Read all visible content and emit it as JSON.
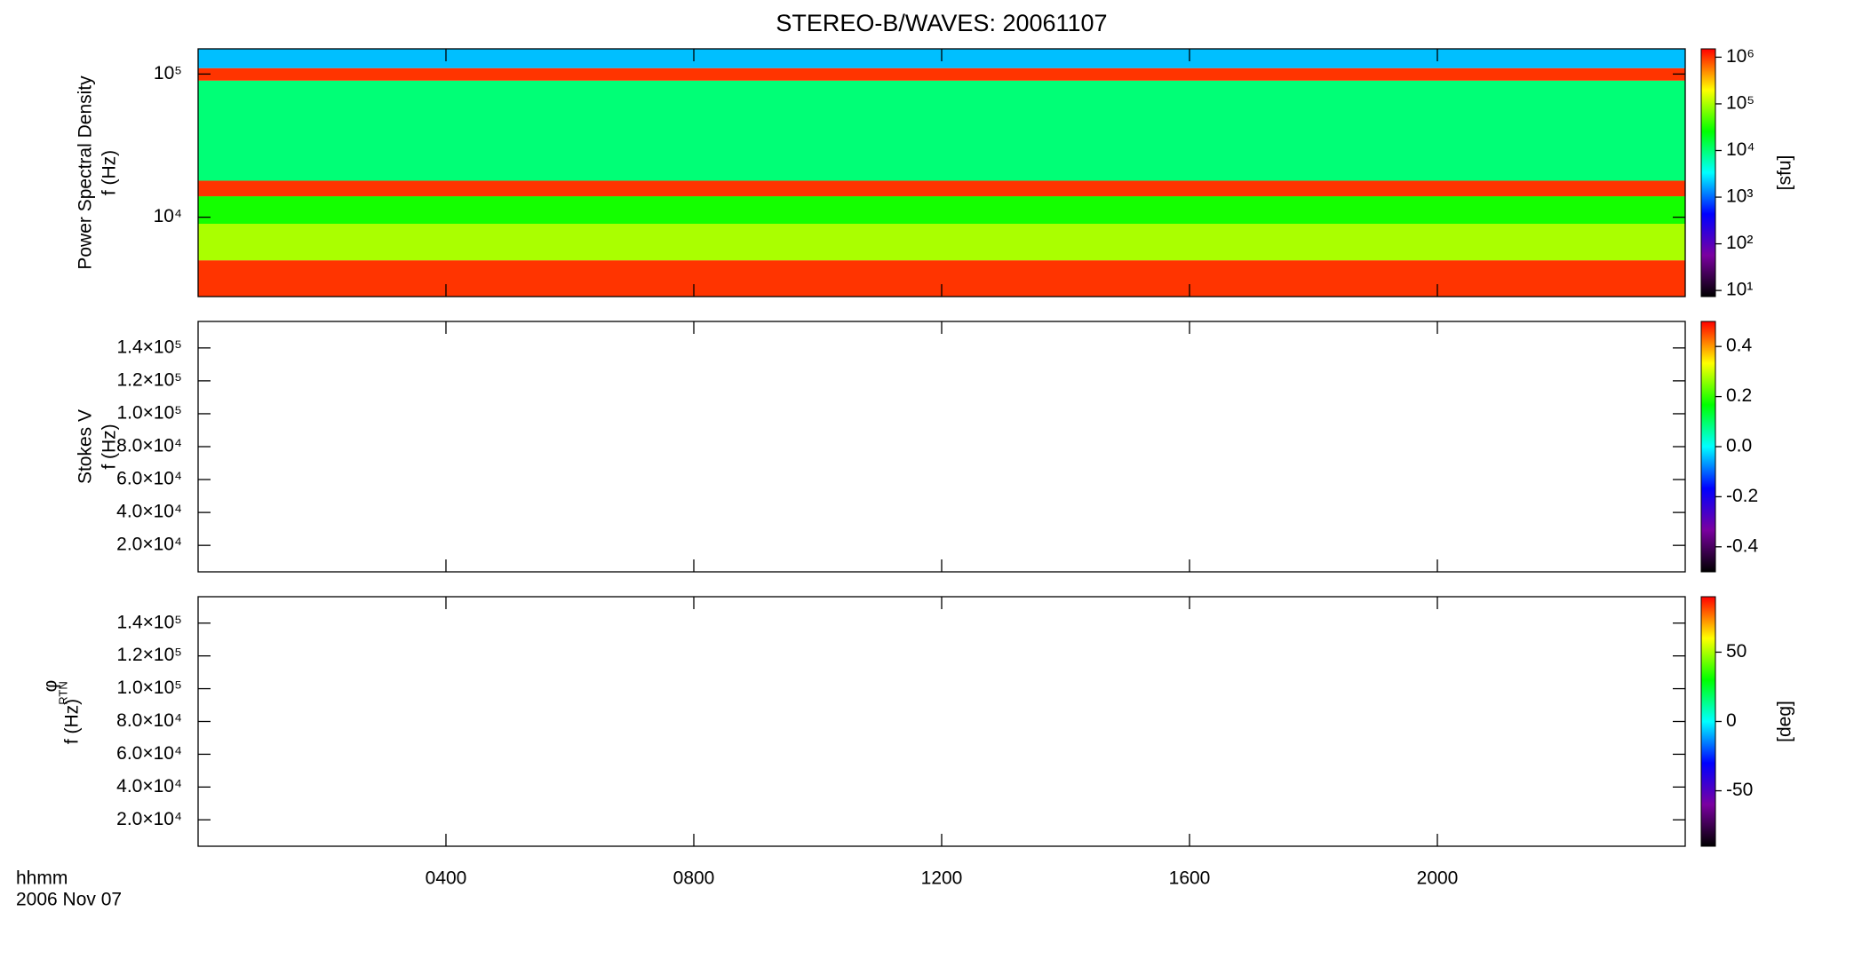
{
  "chart_data": [
    {
      "type": "heatmap",
      "title": "STEREO-B/WAVES: 20061107",
      "ylabel": [
        "Power Spectral Density",
        "f (Hz)"
      ],
      "xlim": [
        0,
        24
      ],
      "yscale": "log",
      "ylim": [
        2790,
        150000
      ],
      "yticks": [
        {
          "value": 10000,
          "label": "10⁴"
        },
        {
          "value": 100000,
          "label": "10⁵"
        }
      ],
      "ybins": [
        2790,
        5000,
        9000,
        14000,
        18000,
        90000,
        110000,
        150000
      ],
      "values": [
        1000000,
        100000,
        30000,
        1000000,
        10000,
        1000000,
        2000
      ],
      "colormap": [
        "#000000",
        "#7a00a0",
        "#0000ff",
        "#00ffff",
        "#00ff00",
        "#ffff00",
        "#ff0000"
      ],
      "colorbar": {
        "scale": "log",
        "lim": [
          7.4,
          1510000
        ],
        "label": "[sfu]",
        "ticks": [
          {
            "value": 10,
            "label": "10¹"
          },
          {
            "value": 100,
            "label": "10²"
          },
          {
            "value": 1000,
            "label": "10³"
          },
          {
            "value": 10000,
            "label": "10⁴"
          },
          {
            "value": 100000,
            "label": "10⁵"
          },
          {
            "value": 1000000,
            "label": "10⁶"
          }
        ]
      }
    },
    {
      "type": "heatmap",
      "ylabel": [
        "Stokes V",
        "f (Hz)"
      ],
      "xlim": [
        0,
        24
      ],
      "yscale": "linear",
      "ylim": [
        3900,
        156100
      ],
      "yticks": [
        {
          "value": 20000,
          "label": "2.0×10⁴"
        },
        {
          "value": 40000,
          "label": "4.0×10⁴"
        },
        {
          "value": 60000,
          "label": "6.0×10⁴"
        },
        {
          "value": 80000,
          "label": "8.0×10⁴"
        },
        {
          "value": 100000,
          "label": "1.0×10⁵"
        },
        {
          "value": 120000,
          "label": "1.2×10⁵"
        },
        {
          "value": 140000,
          "label": "1.4×10⁵"
        }
      ],
      "colormap": [
        "#000000",
        "#7a00a0",
        "#0000ff",
        "#00ffff",
        "#00ff00",
        "#ffff00",
        "#ff0000"
      ],
      "colorbar": {
        "scale": "linear",
        "lim": [
          -0.5,
          0.5
        ],
        "ticks": [
          -0.4,
          -0.2,
          {
            "value": 0,
            "label": "0.0"
          },
          0.2,
          0.4
        ]
      }
    },
    {
      "type": "heatmap",
      "ylabel": [
        "φ",
        "RTN",
        "f (Hz)"
      ],
      "xlim": [
        0,
        24
      ],
      "xticks": [
        {
          "value": 4,
          "label": "0400"
        },
        {
          "value": 8,
          "label": "0800"
        },
        {
          "value": 12,
          "label": "1200"
        },
        {
          "value": 16,
          "label": "1600"
        },
        {
          "value": 20,
          "label": "2000"
        }
      ],
      "xlabel": [
        "hhmm",
        "2006 Nov 07"
      ],
      "yscale": "linear",
      "ylim": [
        3900,
        156100
      ],
      "yticks": [
        {
          "value": 20000,
          "label": "2.0×10⁴"
        },
        {
          "value": 40000,
          "label": "4.0×10⁴"
        },
        {
          "value": 60000,
          "label": "6.0×10⁴"
        },
        {
          "value": 80000,
          "label": "8.0×10⁴"
        },
        {
          "value": 100000,
          "label": "1.0×10⁵"
        },
        {
          "value": 120000,
          "label": "1.2×10⁵"
        },
        {
          "value": 140000,
          "label": "1.4×10⁵"
        }
      ],
      "colormap": [
        "#000000",
        "#7a00a0",
        "#0000ff",
        "#00ffff",
        "#00ff00",
        "#ffff00",
        "#ff0000"
      ],
      "colorbar": {
        "scale": "linear",
        "lim": [
          -90,
          90
        ],
        "label": "[deg]",
        "ticks": [
          -50,
          0,
          50
        ]
      }
    }
  ]
}
